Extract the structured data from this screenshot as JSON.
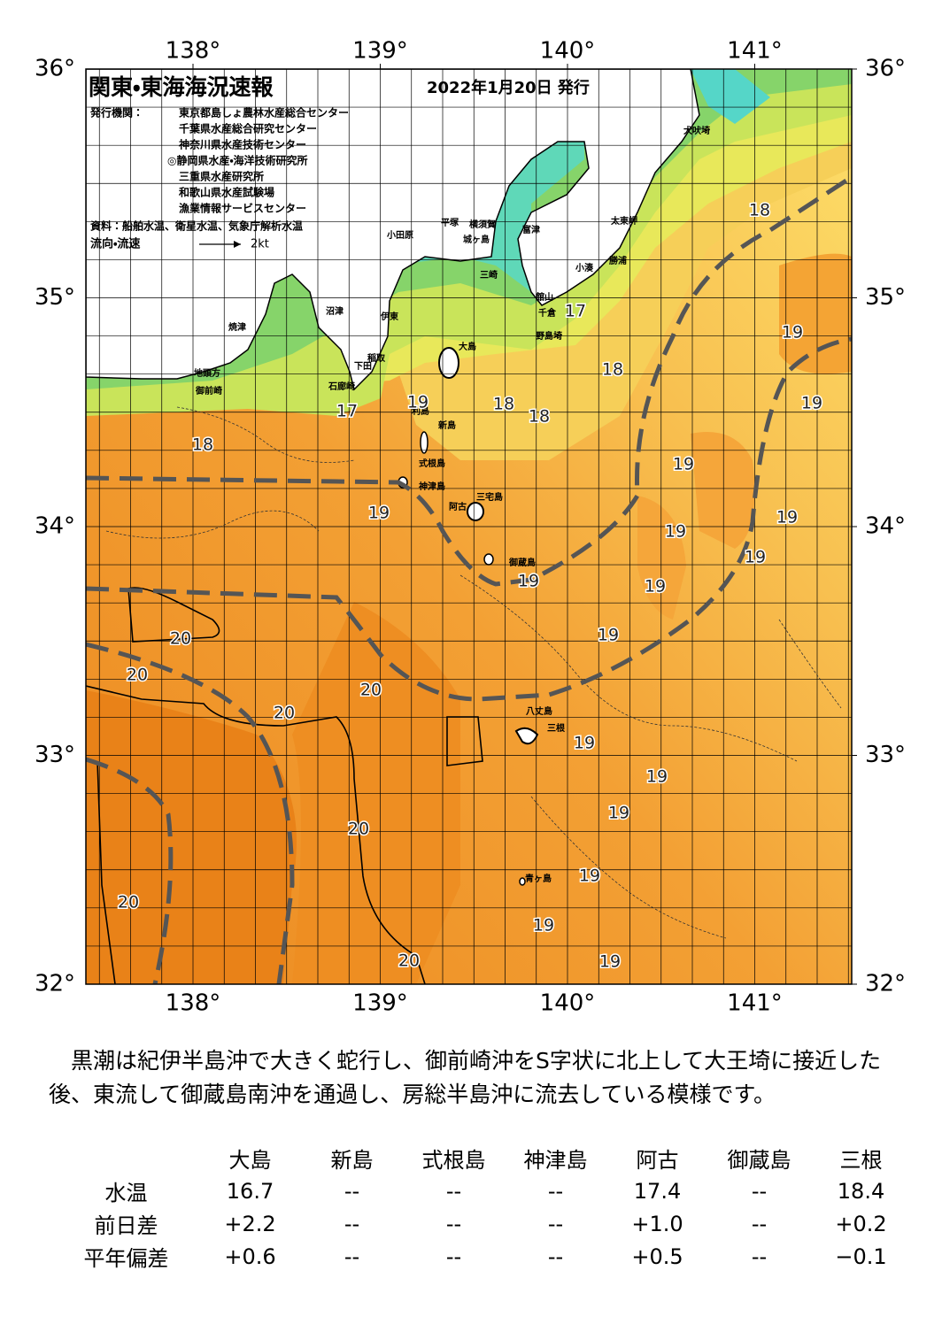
{
  "header": {
    "title": "関東・東海海況速報",
    "date": "2022年1月20日 発行",
    "issuers_label": "発行機関：",
    "issuers": [
      "東京都島しょ農林水産総合センター",
      "千葉県水産総合研究センター",
      "神奈川県水産技術センター",
      "◎静岡県水産・海洋技術研究所",
      "三重県水産研究所",
      "和歌山県水産試験場",
      "漁業情報サービスセンター"
    ],
    "sources": "資料：船舶水温、衛星水温、気象庁解析水温",
    "current_label": "流向・流速",
    "current_scale": "2kt"
  },
  "map": {
    "lon_ticks": [
      {
        "value": 138,
        "label": "138°"
      },
      {
        "value": 139,
        "label": "139°"
      },
      {
        "value": 140,
        "label": "140°"
      },
      {
        "value": 141,
        "label": "141°"
      }
    ],
    "lat_ticks": [
      {
        "value": 36,
        "label": "36°"
      },
      {
        "value": 35,
        "label": "35°"
      },
      {
        "value": 34,
        "label": "34°"
      },
      {
        "value": 33,
        "label": "33°"
      },
      {
        "value": 32,
        "label": "32°"
      }
    ],
    "place_names": [
      "犬吠埼",
      "太東岬",
      "勝浦",
      "小湊",
      "館山",
      "千倉",
      "野島埼",
      "富津",
      "横須賀",
      "城ヶ島",
      "三崎",
      "平塚",
      "小田原",
      "沼津",
      "伊東",
      "焼津",
      "稲取",
      "下田",
      "石廊崎",
      "地頭方",
      "御前崎",
      "大島",
      "利島",
      "新島",
      "式根島",
      "神津島",
      "三宅島",
      "阿古",
      "御蔵島",
      "八丈島",
      "三根",
      "青ヶ島"
    ],
    "isotherm_labels": [
      18,
      17,
      19,
      18,
      19,
      19,
      18,
      18,
      17,
      18,
      19,
      19,
      19,
      19,
      19,
      19,
      19,
      20,
      19,
      20,
      20,
      20,
      19,
      19,
      19,
      20,
      19,
      20,
      19,
      20,
      19
    ]
  },
  "summary": "黒潮は紀伊半島沖で大きく蛇行し、御前崎沖をS字状に北上して大王埼に接近した後、東流して御蔵島南沖を通過し、房総半島沖に流去している模様です。",
  "table": {
    "columns": [
      "大島",
      "新島",
      "式根島",
      "神津島",
      "阿古",
      "御蔵島",
      "三根"
    ],
    "rows": [
      {
        "label": "水温",
        "cells": [
          "16.7",
          "--",
          "--",
          "--",
          "17.4",
          "--",
          "18.4"
        ]
      },
      {
        "label": "前日差",
        "cells": [
          "+2.2",
          "--",
          "--",
          "--",
          "+1.0",
          "--",
          "+0.2"
        ]
      },
      {
        "label": "平年偏差",
        "cells": [
          "+0.6",
          "--",
          "--",
          "--",
          "+0.5",
          "--",
          "−0.1"
        ]
      }
    ]
  }
}
